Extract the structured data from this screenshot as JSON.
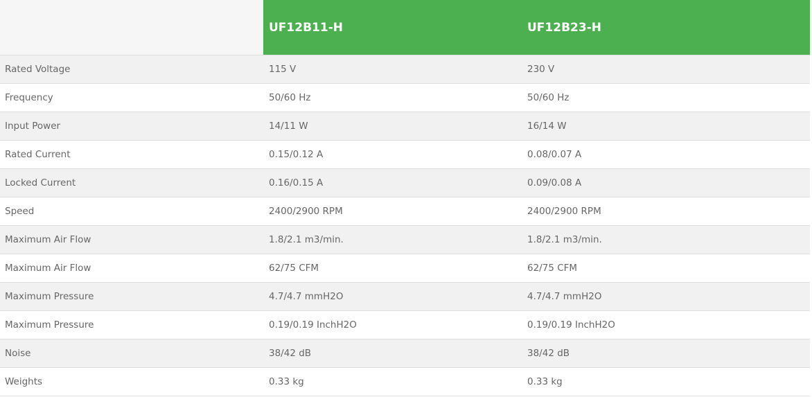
{
  "header": {
    "blank": "",
    "models": [
      "UF12B11-H",
      "UF12B23-H"
    ]
  },
  "colors": {
    "header_green": "#4caf50",
    "row_alt": "#f1f1f1",
    "text": "#666666"
  },
  "rows": [
    {
      "label": "Rated Voltage",
      "values": [
        "115 V",
        "230 V"
      ]
    },
    {
      "label": "Frequency",
      "values": [
        "50/60 Hz",
        "50/60 Hz"
      ]
    },
    {
      "label": "Input Power",
      "values": [
        "14/11 W",
        "16/14 W"
      ]
    },
    {
      "label": "Rated Current",
      "values": [
        "0.15/0.12 A",
        "0.08/0.07 A"
      ]
    },
    {
      "label": "Locked Current",
      "values": [
        "0.16/0.15 A",
        "0.09/0.08 A"
      ]
    },
    {
      "label": "Speed",
      "values": [
        "2400/2900 RPM",
        "2400/2900 RPM"
      ]
    },
    {
      "label": "Maximum Air Flow",
      "values": [
        "1.8/2.1 m3/min.",
        "1.8/2.1 m3/min."
      ]
    },
    {
      "label": "Maximum Air Flow",
      "values": [
        "62/75 CFM",
        "62/75 CFM"
      ]
    },
    {
      "label": "Maximum Pressure",
      "values": [
        "4.7/4.7 mmH2O",
        "4.7/4.7 mmH2O"
      ]
    },
    {
      "label": "Maximum Pressure",
      "values": [
        "0.19/0.19 InchH2O",
        "0.19/0.19 InchH2O"
      ]
    },
    {
      "label": "Noise",
      "values": [
        "38/42 dB",
        "38/42 dB"
      ]
    },
    {
      "label": "Weights",
      "values": [
        "0.33 kg",
        "0.33 kg"
      ]
    }
  ]
}
